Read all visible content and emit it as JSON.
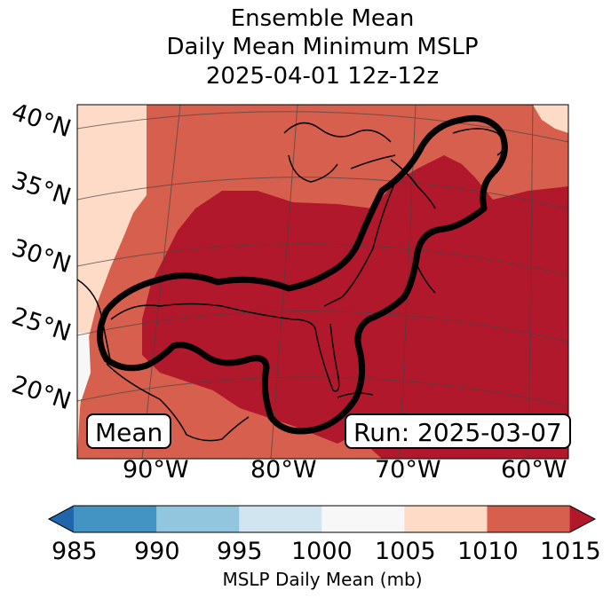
{
  "title": {
    "line1": "Ensemble Mean",
    "line2": "Daily Mean Minimum MSLP",
    "line3": "2025-04-01 12z-12z"
  },
  "map": {
    "latitude_labels": [
      "40°N",
      "35°N",
      "30°N",
      "25°N",
      "20°N"
    ],
    "longitude_labels": [
      "90°W",
      "80°W",
      "70°W",
      "60°W"
    ],
    "mean_box_label": "Mean",
    "run_box_label": "Run: 2025-03-07",
    "outline_description_colour": "#000000"
  },
  "colorbar": {
    "ticks": [
      "985",
      "990",
      "995",
      "1000",
      "1005",
      "1010",
      "1015"
    ],
    "label": "MSLP Daily Mean (mb)",
    "colors": {
      "below": "#2166ac",
      "985-990": "#4393c3",
      "990-995": "#92c5de",
      "995-1000": "#d1e5f0",
      "1000-1005": "#f7f7f7",
      "1005-1010": "#fddbc7",
      "1010-1015": "#d6604d",
      "above": "#b2182b"
    }
  }
}
